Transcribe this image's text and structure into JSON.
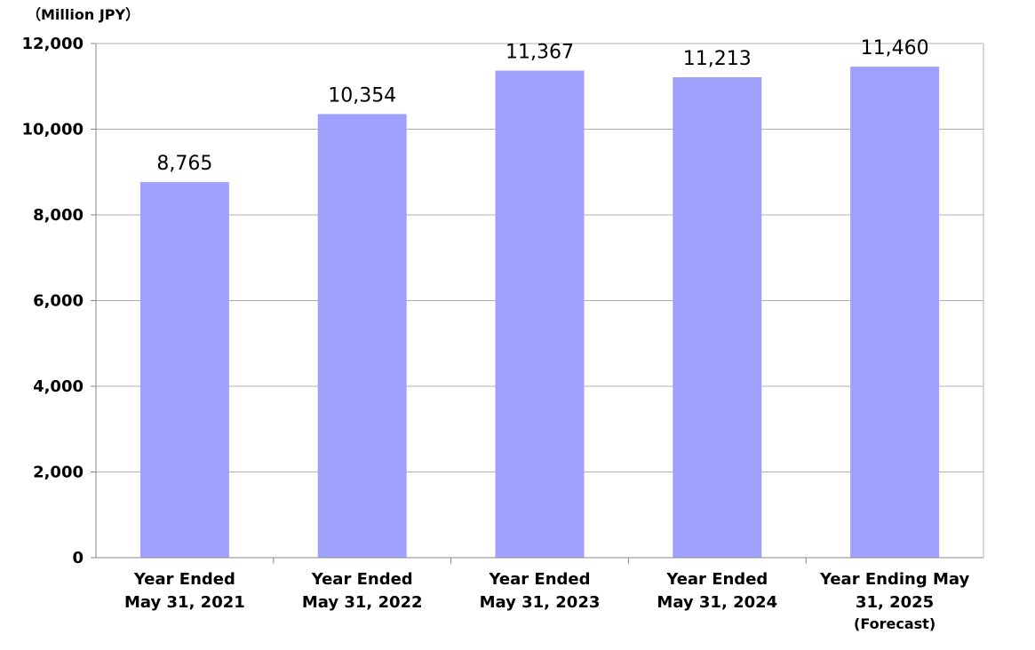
{
  "chart_data": {
    "type": "bar",
    "unit_label": "（Million JPY）",
    "categories": [
      [
        "Year Ended",
        "May 31, 2021"
      ],
      [
        "Year Ended",
        "May 31, 2022"
      ],
      [
        "Year Ended",
        "May 31, 2023"
      ],
      [
        "Year Ended",
        "May 31, 2024"
      ],
      [
        "Year Ending May",
        "31, 2025",
        "(Forecast)"
      ]
    ],
    "values": [
      8765,
      10354,
      11367,
      11213,
      11460
    ],
    "value_labels": [
      "8,765",
      "10,354",
      "11,367",
      "11,213",
      "11,460"
    ],
    "y_ticks": [
      0,
      2000,
      4000,
      6000,
      8000,
      10000,
      12000
    ],
    "y_tick_labels": [
      "0",
      "2,000",
      "4,000",
      "6,000",
      "8,000",
      "10,000",
      "12,000"
    ],
    "ylim": [
      0,
      12000
    ],
    "grid": true,
    "bar_color": "#a0a0ff",
    "grid_color": "#b0b0b0",
    "axis_color": "#888888"
  }
}
